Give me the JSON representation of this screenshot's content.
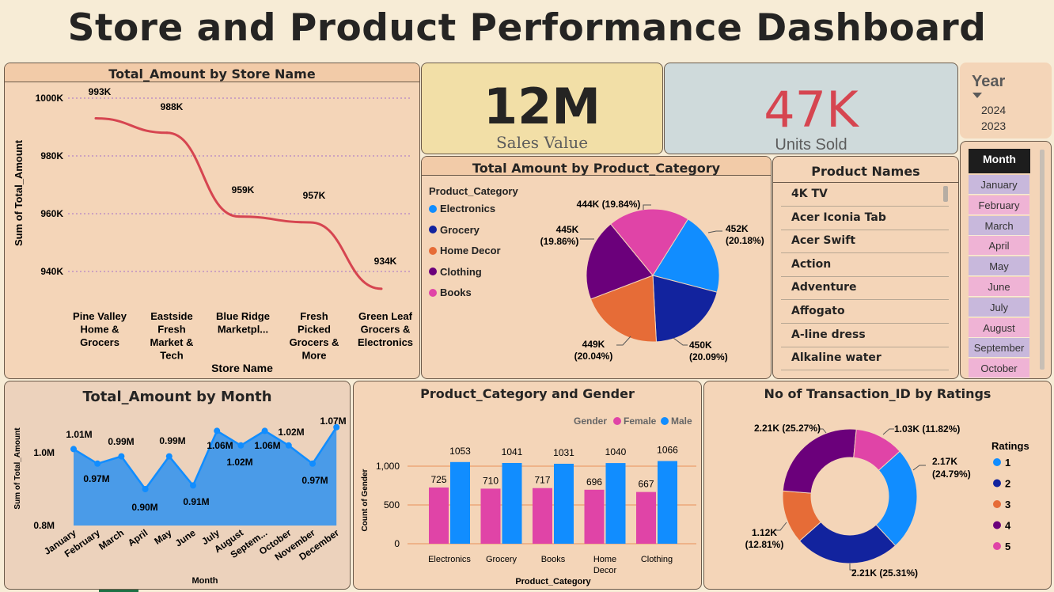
{
  "title": "Store and Product Performance Dashboard",
  "store_chart": {
    "title": "Total_Amount by Store Name",
    "ylabel": "Sum of Total_Amount",
    "xlabel": "Store Name",
    "yticks": [
      "1000K",
      "980K",
      "960K",
      "940K"
    ],
    "categories": [
      [
        "Pine Valley",
        "Home &",
        "Grocers"
      ],
      [
        "Eastside",
        "Fresh",
        "Market &",
        "Tech"
      ],
      [
        "Blue Ridge",
        "Marketpl..."
      ],
      [
        "Fresh",
        "Picked",
        "Grocers &",
        "More"
      ],
      [
        "Green Leaf",
        "Grocers &",
        "Electronics"
      ]
    ],
    "labels": [
      "993K",
      "988K",
      "959K",
      "957K",
      "934K"
    ]
  },
  "kpi": {
    "sales_value": "12M",
    "sales_label": "Sales Value",
    "units_value": "47K",
    "units_label": "Units Sold"
  },
  "year_slicer": {
    "title": "Year",
    "options": [
      "2024",
      "2023"
    ]
  },
  "category_pie": {
    "title": "Total Amount by Product_Category",
    "legend_title": "Product_Category",
    "legend": [
      "Electronics",
      "Grocery",
      "Home Decor",
      "Clothing",
      "Books"
    ],
    "labels": {
      "electronics": [
        "452K",
        "(20.18%)"
      ],
      "grocery": [
        "450K",
        "(20.09%)"
      ],
      "home_decor": [
        "449K",
        "(20.04%)"
      ],
      "clothing": [
        "445K",
        "(19.86%)"
      ],
      "books": "444K (19.84%)"
    }
  },
  "product_names": {
    "title": "Product Names",
    "items": [
      "4K TV",
      "Acer Iconia Tab",
      "Acer Swift",
      "Action",
      "Adventure",
      "Affogato",
      "A-line dress",
      "Alkaline water"
    ]
  },
  "month_slicer": {
    "title": "Month",
    "items": [
      "January",
      "February",
      "March",
      "April",
      "May",
      "June",
      "July",
      "August",
      "September",
      "October"
    ]
  },
  "month_chart": {
    "title": "Total_Amount by Month",
    "ylabel": "Sum of Total_Amount",
    "xlabel": "Month",
    "yticks": [
      "1.0M",
      "0.8M"
    ],
    "months": [
      "January",
      "February",
      "March",
      "April",
      "May",
      "June",
      "July",
      "August",
      "Septem...",
      "October",
      "November",
      "December"
    ],
    "labels": [
      "1.01M",
      "0.97M",
      "0.99M",
      "0.90M",
      "0.99M",
      "0.91M",
      "1.06M",
      "1.02M",
      "1.06M",
      "1.02M",
      "0.97M",
      "1.07M"
    ]
  },
  "gender_chart": {
    "title": "Product_Category and Gender",
    "legend_title": "Gender",
    "legend": [
      "Female",
      "Male"
    ],
    "ylabel": "Count of Gender",
    "xlabel": "Product_Category",
    "yticks": [
      "1,000",
      "500",
      "0"
    ],
    "categories": [
      [
        "Electronics"
      ],
      [
        "Grocery"
      ],
      [
        "Books"
      ],
      [
        "Home",
        "Decor"
      ],
      [
        "Clothing"
      ]
    ],
    "female_labels": [
      "725",
      "710",
      "717",
      "696",
      "667"
    ],
    "male_labels": [
      "1053",
      "1041",
      "1031",
      "1040",
      "1066"
    ]
  },
  "ratings_chart": {
    "title": "No of Transaction_ID by Ratings",
    "legend_title": "Ratings",
    "legend": [
      "1",
      "2",
      "3",
      "4",
      "5"
    ],
    "labels": {
      "r1": [
        "2.17K",
        "(24.79%)"
      ],
      "r2": "2.21K (25.31%)",
      "r3": [
        "1.12K",
        "(12.81%)"
      ],
      "r4": "2.21K (25.27%)",
      "r5": "1.03K (11.82%)"
    }
  },
  "colors": {
    "line": "#d64550",
    "electronics": "#118dff",
    "grocery": "#12239e",
    "home_decor": "#e66c37",
    "clothing": "#6b007b",
    "books": "#e044a7",
    "female": "#e044a7",
    "male": "#118dff",
    "area": "#4a9be8"
  },
  "chart_data": [
    {
      "type": "line",
      "title": "Total_Amount by Store Name",
      "xlabel": "Store Name",
      "ylabel": "Sum of Total_Amount",
      "categories": [
        "Pine Valley Home & Grocers",
        "Eastside Fresh Market & Tech",
        "Blue Ridge Marketpl...",
        "Fresh Picked Grocers & More",
        "Green Leaf Grocers & Electronics"
      ],
      "values": [
        993000,
        988000,
        959000,
        957000,
        934000
      ],
      "ylim": [
        930000,
        1000000
      ],
      "grid": true
    },
    {
      "type": "pie",
      "title": "Total Amount by Product_Category",
      "categories": [
        "Electronics",
        "Grocery",
        "Home Decor",
        "Clothing",
        "Books"
      ],
      "values": [
        452000,
        450000,
        449000,
        445000,
        444000
      ],
      "legend": "left"
    },
    {
      "type": "area",
      "title": "Total_Amount by Month",
      "xlabel": "Month",
      "ylabel": "Sum of Total_Amount",
      "categories": [
        "January",
        "February",
        "March",
        "April",
        "May",
        "June",
        "July",
        "August",
        "September",
        "October",
        "November",
        "December"
      ],
      "values": [
        1010000,
        970000,
        990000,
        900000,
        990000,
        910000,
        1060000,
        1020000,
        1060000,
        1020000,
        970000,
        1070000
      ],
      "ylim": [
        800000,
        1090000
      ]
    },
    {
      "type": "bar",
      "title": "Product_Category and Gender",
      "xlabel": "Product_Category",
      "ylabel": "Count of Gender",
      "categories": [
        "Electronics",
        "Grocery",
        "Books",
        "Home Decor",
        "Clothing"
      ],
      "series": [
        {
          "name": "Female",
          "values": [
            725,
            710,
            717,
            696,
            667
          ]
        },
        {
          "name": "Male",
          "values": [
            1053,
            1041,
            1031,
            1040,
            1066
          ]
        }
      ],
      "ylim": [
        0,
        1200
      ],
      "legend": "top-right"
    },
    {
      "type": "pie",
      "title": "No of Transaction_ID by Ratings",
      "categories": [
        "1",
        "2",
        "3",
        "4",
        "5"
      ],
      "values": [
        2170,
        2210,
        1120,
        2210,
        1030
      ],
      "legend": "right"
    }
  ]
}
